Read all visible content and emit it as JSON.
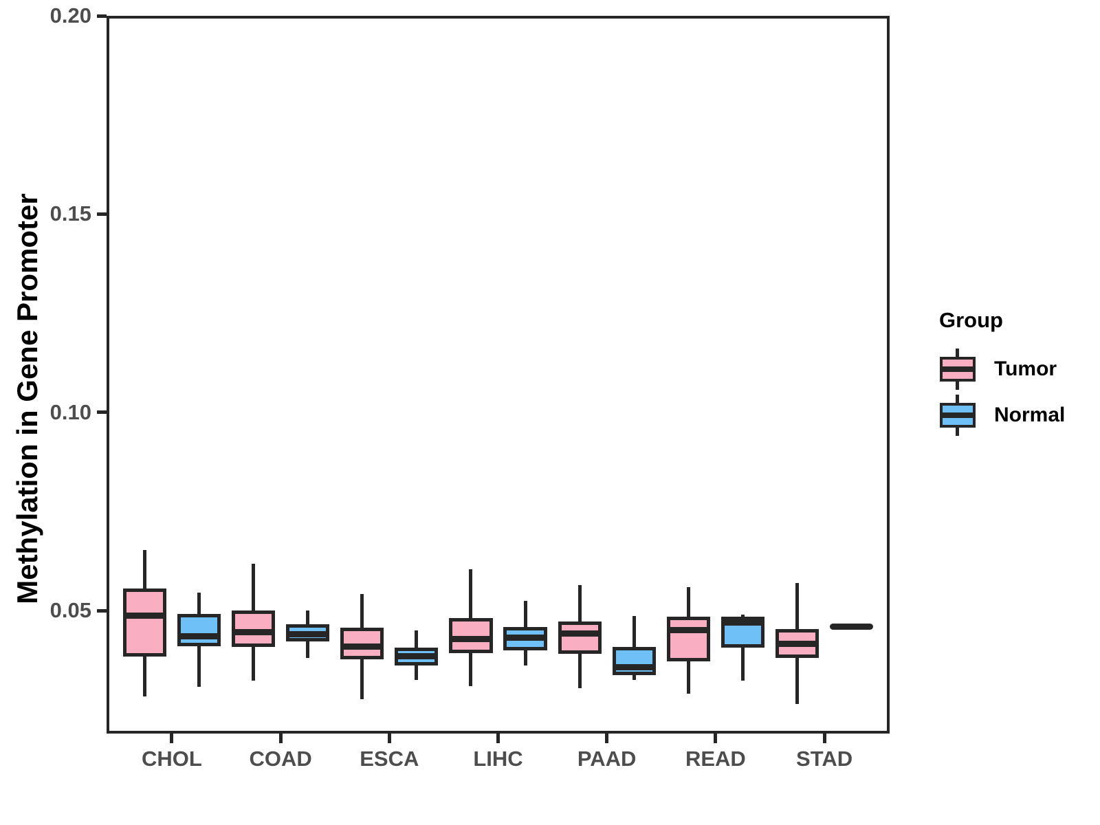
{
  "chart_data": {
    "type": "boxplot",
    "title": "",
    "xlabel": "",
    "ylabel": "Methylation in Gene Promoter",
    "legend_title": "Group",
    "legend_position": "right",
    "grid": false,
    "panel_border": true,
    "line_color": "#262626",
    "tick_text_color": "#4d4d4d",
    "ylim": [
      0.019,
      0.2
    ],
    "yticks": [
      0.05,
      0.1,
      0.15,
      0.2
    ],
    "ytick_labels": [
      "0.05",
      "0.10",
      "0.15",
      "0.20"
    ],
    "categories": [
      "CHOL",
      "COAD",
      "ESCA",
      "LIHC",
      "PAAD",
      "READ",
      "STAD"
    ],
    "series": [
      {
        "name": "Tumor",
        "fill": "#FAAEC1",
        "boxes": [
          {
            "low": 0.0284,
            "q1": 0.0384,
            "median": 0.0487,
            "q3": 0.0556,
            "high": 0.0653
          },
          {
            "low": 0.0323,
            "q1": 0.0409,
            "median": 0.0446,
            "q3": 0.05,
            "high": 0.0619
          },
          {
            "low": 0.0276,
            "q1": 0.0377,
            "median": 0.041,
            "q3": 0.0457,
            "high": 0.0542
          },
          {
            "low": 0.031,
            "q1": 0.0392,
            "median": 0.0428,
            "q3": 0.0481,
            "high": 0.0605
          },
          {
            "low": 0.0304,
            "q1": 0.0391,
            "median": 0.0443,
            "q3": 0.0472,
            "high": 0.0565
          },
          {
            "low": 0.029,
            "q1": 0.0372,
            "median": 0.0451,
            "q3": 0.0485,
            "high": 0.056
          },
          {
            "low": 0.0264,
            "q1": 0.038,
            "median": 0.0417,
            "q3": 0.0454,
            "high": 0.0569
          }
        ]
      },
      {
        "name": "Normal",
        "fill": "#6EC0F6",
        "boxes": [
          {
            "low": 0.0308,
            "q1": 0.041,
            "median": 0.0436,
            "q3": 0.0491,
            "high": 0.0545
          },
          {
            "low": 0.038,
            "q1": 0.0423,
            "median": 0.044,
            "q3": 0.0466,
            "high": 0.05
          },
          {
            "low": 0.0325,
            "q1": 0.0362,
            "median": 0.0385,
            "q3": 0.0406,
            "high": 0.045
          },
          {
            "low": 0.0362,
            "q1": 0.0399,
            "median": 0.0431,
            "q3": 0.0458,
            "high": 0.0524
          },
          {
            "low": 0.0325,
            "q1": 0.0337,
            "median": 0.0358,
            "q3": 0.0409,
            "high": 0.0487
          },
          {
            "low": 0.0323,
            "q1": 0.0407,
            "median": 0.047,
            "q3": 0.0484,
            "high": 0.049
          },
          {
            "low": 0.0459,
            "q1": 0.0459,
            "median": 0.0459,
            "q3": 0.0459,
            "high": 0.0459
          }
        ]
      }
    ]
  }
}
